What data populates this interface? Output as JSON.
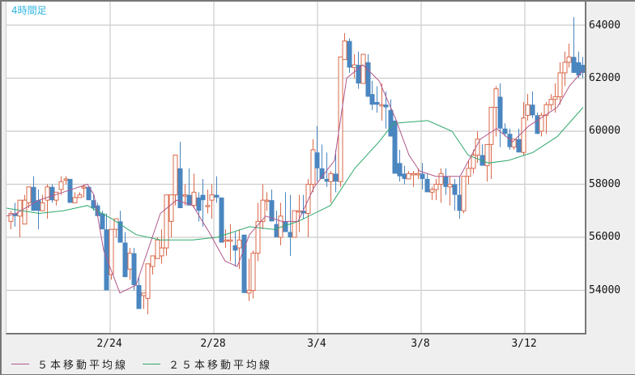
{
  "chart_data": {
    "type": "candlestick",
    "title": "4時間足",
    "timeframe": "4h",
    "xlabel": "",
    "ylabel": "",
    "ylim": [
      52800,
      64900
    ],
    "y_ticks": [
      54000,
      56000,
      58000,
      60000,
      62000,
      64000
    ],
    "x_ticks": [
      "2/24",
      "2/28",
      "3/4",
      "3/8",
      "3/12"
    ],
    "grid": true,
    "legend_position": "bottom-left",
    "colors": {
      "up": "#d9694a",
      "down": "#4a86c0",
      "ma5": "#b0578a",
      "ma25": "#2ea86b",
      "grid": "#cccccc",
      "title": "#33b5e0"
    },
    "legend": [
      {
        "label": "５本移動平均線",
        "color": "#b0578a"
      },
      {
        "label": "２５本移動平均線",
        "color": "#2ea86b"
      }
    ],
    "candles": [
      [
        56600,
        57000,
        56300,
        56900
      ],
      [
        56900,
        57300,
        56400,
        56800
      ],
      [
        56800,
        57200,
        56000,
        57400
      ],
      [
        56500,
        57600,
        56500,
        57400
      ],
      [
        57300,
        57900,
        57100,
        57900
      ],
      [
        57900,
        58300,
        57000,
        57000
      ],
      [
        57400,
        57800,
        56300,
        57000
      ],
      [
        57000,
        57600,
        57000,
        57300
      ],
      [
        57400,
        58000,
        56700,
        57900
      ],
      [
        57900,
        58000,
        57300,
        57400
      ],
      [
        57400,
        57700,
        57200,
        57700
      ],
      [
        57800,
        58300,
        57600,
        58100
      ],
      [
        58200,
        58300,
        58000,
        58200
      ],
      [
        58200,
        58200,
        57600,
        57300
      ],
      [
        57300,
        57700,
        57300,
        57500
      ],
      [
        57500,
        57700,
        57500,
        57600
      ],
      [
        57900,
        58000,
        57500,
        57900
      ],
      [
        57900,
        57900,
        57400,
        57400
      ],
      [
        57400,
        57600,
        57000,
        57100
      ],
      [
        57200,
        57300,
        56900,
        56800
      ],
      [
        56900,
        57000,
        56500,
        56300
      ],
      [
        56300,
        56900,
        54000,
        54000
      ],
      [
        54600,
        56300,
        54400,
        56300
      ],
      [
        56300,
        56500,
        56000,
        56700
      ],
      [
        56600,
        57000,
        56000,
        55800
      ],
      [
        55800,
        56200,
        54500,
        54500
      ],
      [
        54800,
        55600,
        54400,
        55400
      ],
      [
        55400,
        55600,
        54000,
        54200
      ],
      [
        54200,
        54500,
        53400,
        53300
      ],
      [
        53800,
        53900,
        53300,
        53900
      ],
      [
        53700,
        55000,
        53100,
        55000
      ],
      [
        54900,
        55300,
        54600,
        55300
      ],
      [
        55200,
        56000,
        55200,
        55900
      ],
      [
        55300,
        56300,
        55000,
        55600
      ],
      [
        55600,
        57300,
        55300,
        57600
      ],
      [
        56600,
        57400,
        56000,
        57600
      ],
      [
        57600,
        58700,
        57200,
        59100
      ],
      [
        58600,
        59600,
        57300,
        57100
      ],
      [
        57600,
        58000,
        57200,
        57600
      ],
      [
        57600,
        58600,
        57400,
        57200
      ],
      [
        57200,
        58400,
        57100,
        57700
      ],
      [
        57500,
        57700,
        56600,
        57000
      ],
      [
        57600,
        58200,
        56400,
        57400
      ],
      [
        57200,
        57800,
        56900,
        57200
      ],
      [
        57400,
        58000,
        56700,
        57600
      ],
      [
        57600,
        58300,
        57300,
        57500
      ],
      [
        57500,
        57500,
        55800,
        55800
      ],
      [
        55900,
        56300,
        55600,
        55900
      ],
      [
        55900,
        56500,
        55100,
        55900
      ],
      [
        55700,
        56200,
        54900,
        55500
      ],
      [
        55600,
        56300,
        54800,
        55900
      ],
      [
        56100,
        56100,
        54500,
        53900
      ],
      [
        53900,
        55200,
        53600,
        54000
      ],
      [
        54000,
        55500,
        53700,
        55400
      ],
      [
        55400,
        57300,
        55100,
        56600
      ],
      [
        56600,
        58000,
        56300,
        57400
      ],
      [
        57400,
        57700,
        57000,
        57400
      ],
      [
        57400,
        57800,
        56700,
        56600
      ],
      [
        56500,
        57000,
        56000,
        56000
      ],
      [
        56000,
        57300,
        55700,
        56800
      ],
      [
        56600,
        57700,
        56200,
        56200
      ],
      [
        56200,
        57600,
        55300,
        56000
      ],
      [
        56000,
        56500,
        56300,
        57000
      ],
      [
        57000,
        57600,
        56200,
        57000
      ],
      [
        57000,
        57600,
        56700,
        56900
      ],
      [
        56900,
        58200,
        56000,
        58000
      ],
      [
        58000,
        59700,
        57700,
        59300
      ],
      [
        59200,
        60200,
        58100,
        58600
      ],
      [
        58600,
        59500,
        58200,
        58200
      ],
      [
        58200,
        59200,
        57900,
        58100
      ],
      [
        58100,
        58500,
        57300,
        58400
      ],
      [
        58400,
        59300,
        57700,
        58100
      ],
      [
        58100,
        61800,
        57900,
        62800
      ],
      [
        62700,
        63700,
        63000,
        63400
      ],
      [
        63400,
        63500,
        62200,
        62400
      ],
      [
        62400,
        62900,
        62000,
        62500
      ],
      [
        62500,
        63000,
        61600,
        61800
      ],
      [
        61800,
        62900,
        61900,
        62900
      ],
      [
        62600,
        62900,
        61300,
        61300
      ],
      [
        61400,
        61900,
        60800,
        61000
      ],
      [
        61100,
        61700,
        60700,
        61000
      ],
      [
        61000,
        61800,
        60400,
        61000
      ],
      [
        61000,
        61500,
        60100,
        60900
      ],
      [
        60800,
        61200,
        59800,
        59800
      ],
      [
        60400,
        60400,
        58400,
        58400
      ],
      [
        58800,
        59300,
        58100,
        58300
      ],
      [
        58400,
        58700,
        58000,
        58200
      ],
      [
        58200,
        58500,
        58200,
        58400
      ],
      [
        58400,
        58500,
        57900,
        58400
      ],
      [
        58400,
        58600,
        58200,
        58400
      ],
      [
        58400,
        58800,
        57800,
        58200
      ],
      [
        58200,
        58400,
        57800,
        57700
      ],
      [
        57700,
        57900,
        57400,
        57800
      ],
      [
        57800,
        58200,
        57400,
        58000
      ],
      [
        58000,
        58600,
        57300,
        58400
      ],
      [
        58300,
        58600,
        57600,
        57900
      ],
      [
        57900,
        58300,
        57200,
        58000
      ],
      [
        58000,
        58200,
        57000,
        57600
      ],
      [
        57600,
        58300,
        56700,
        57000
      ],
      [
        57000,
        58300,
        56900,
        58300
      ],
      [
        58300,
        58900,
        58000,
        58600
      ],
      [
        58600,
        59300,
        58400,
        59100
      ],
      [
        59100,
        60000,
        58800,
        59700
      ],
      [
        59100,
        59500,
        58700,
        58700
      ],
      [
        58700,
        59500,
        58100,
        59500
      ],
      [
        59500,
        60800,
        58200,
        60900
      ],
      [
        60900,
        61700,
        59800,
        61600
      ],
      [
        61300,
        61800,
        59400,
        60100
      ],
      [
        60100,
        60300,
        59800,
        59900
      ],
      [
        59900,
        60100,
        59300,
        59400
      ],
      [
        59400,
        59600,
        59300,
        59700
      ],
      [
        59700,
        60100,
        59200,
        59200
      ],
      [
        59200,
        61100,
        59100,
        60500
      ],
      [
        60600,
        61400,
        60400,
        61000
      ],
      [
        61000,
        61500,
        60500,
        60600
      ],
      [
        60600,
        60700,
        59900,
        59900
      ],
      [
        60000,
        60700,
        59800,
        60600
      ],
      [
        60600,
        61100,
        59900,
        61000
      ],
      [
        61000,
        61400,
        60800,
        61200
      ],
      [
        61200,
        61800,
        60700,
        61300
      ],
      [
        61300,
        62600,
        61000,
        62200
      ],
      [
        62200,
        63000,
        61700,
        62600
      ],
      [
        62600,
        63300,
        62400,
        62800
      ],
      [
        62800,
        64300,
        62200,
        62200
      ],
      [
        62600,
        63000,
        62000,
        62100
      ],
      [
        62500,
        62800,
        62000,
        62200
      ]
    ],
    "ma5": [
      [
        0,
        56800
      ],
      [
        12,
        56900
      ],
      [
        40,
        57400
      ],
      [
        70,
        57700
      ],
      [
        100,
        58000
      ],
      [
        108,
        57600
      ],
      [
        120,
        55500
      ],
      [
        140,
        53900
      ],
      [
        160,
        54200
      ],
      [
        190,
        56900
      ],
      [
        210,
        57400
      ],
      [
        230,
        57200
      ],
      [
        250,
        56200
      ],
      [
        270,
        55100
      ],
      [
        285,
        54900
      ],
      [
        300,
        56100
      ],
      [
        320,
        56800
      ],
      [
        340,
        56600
      ],
      [
        360,
        56600
      ],
      [
        380,
        57900
      ],
      [
        405,
        58900
      ],
      [
        420,
        62000
      ],
      [
        440,
        62500
      ],
      [
        460,
        61900
      ],
      [
        480,
        60500
      ],
      [
        497,
        59100
      ],
      [
        510,
        58500
      ],
      [
        530,
        58300
      ],
      [
        560,
        58300
      ],
      [
        585,
        59700
      ],
      [
        605,
        60100
      ],
      [
        625,
        59600
      ],
      [
        645,
        60200
      ],
      [
        665,
        60600
      ],
      [
        680,
        60900
      ],
      [
        695,
        61700
      ],
      [
        712,
        62300
      ]
    ],
    "ma25": [
      [
        0,
        57100
      ],
      [
        40,
        56900
      ],
      [
        70,
        57000
      ],
      [
        100,
        57200
      ],
      [
        130,
        56700
      ],
      [
        160,
        56100
      ],
      [
        190,
        55900
      ],
      [
        230,
        55900
      ],
      [
        260,
        56000
      ],
      [
        300,
        56400
      ],
      [
        330,
        56300
      ],
      [
        360,
        56600
      ],
      [
        400,
        57200
      ],
      [
        430,
        58600
      ],
      [
        460,
        59600
      ],
      [
        478,
        60300
      ],
      [
        520,
        60400
      ],
      [
        550,
        60000
      ],
      [
        570,
        59100
      ],
      [
        595,
        58800
      ],
      [
        620,
        58900
      ],
      [
        650,
        59200
      ],
      [
        680,
        59800
      ],
      [
        712,
        60900
      ]
    ]
  },
  "header": {
    "title": "4時間足"
  },
  "axes": {
    "y_labels": [
      "64000",
      "62000",
      "60000",
      "58000",
      "56000",
      "54000"
    ],
    "x_labels": [
      "2/24",
      "2/28",
      "3/4",
      "3/8",
      "3/12"
    ]
  },
  "legend": {
    "ma5_label": "５本移動平均線",
    "ma25_label": "２５本移動平均線"
  }
}
